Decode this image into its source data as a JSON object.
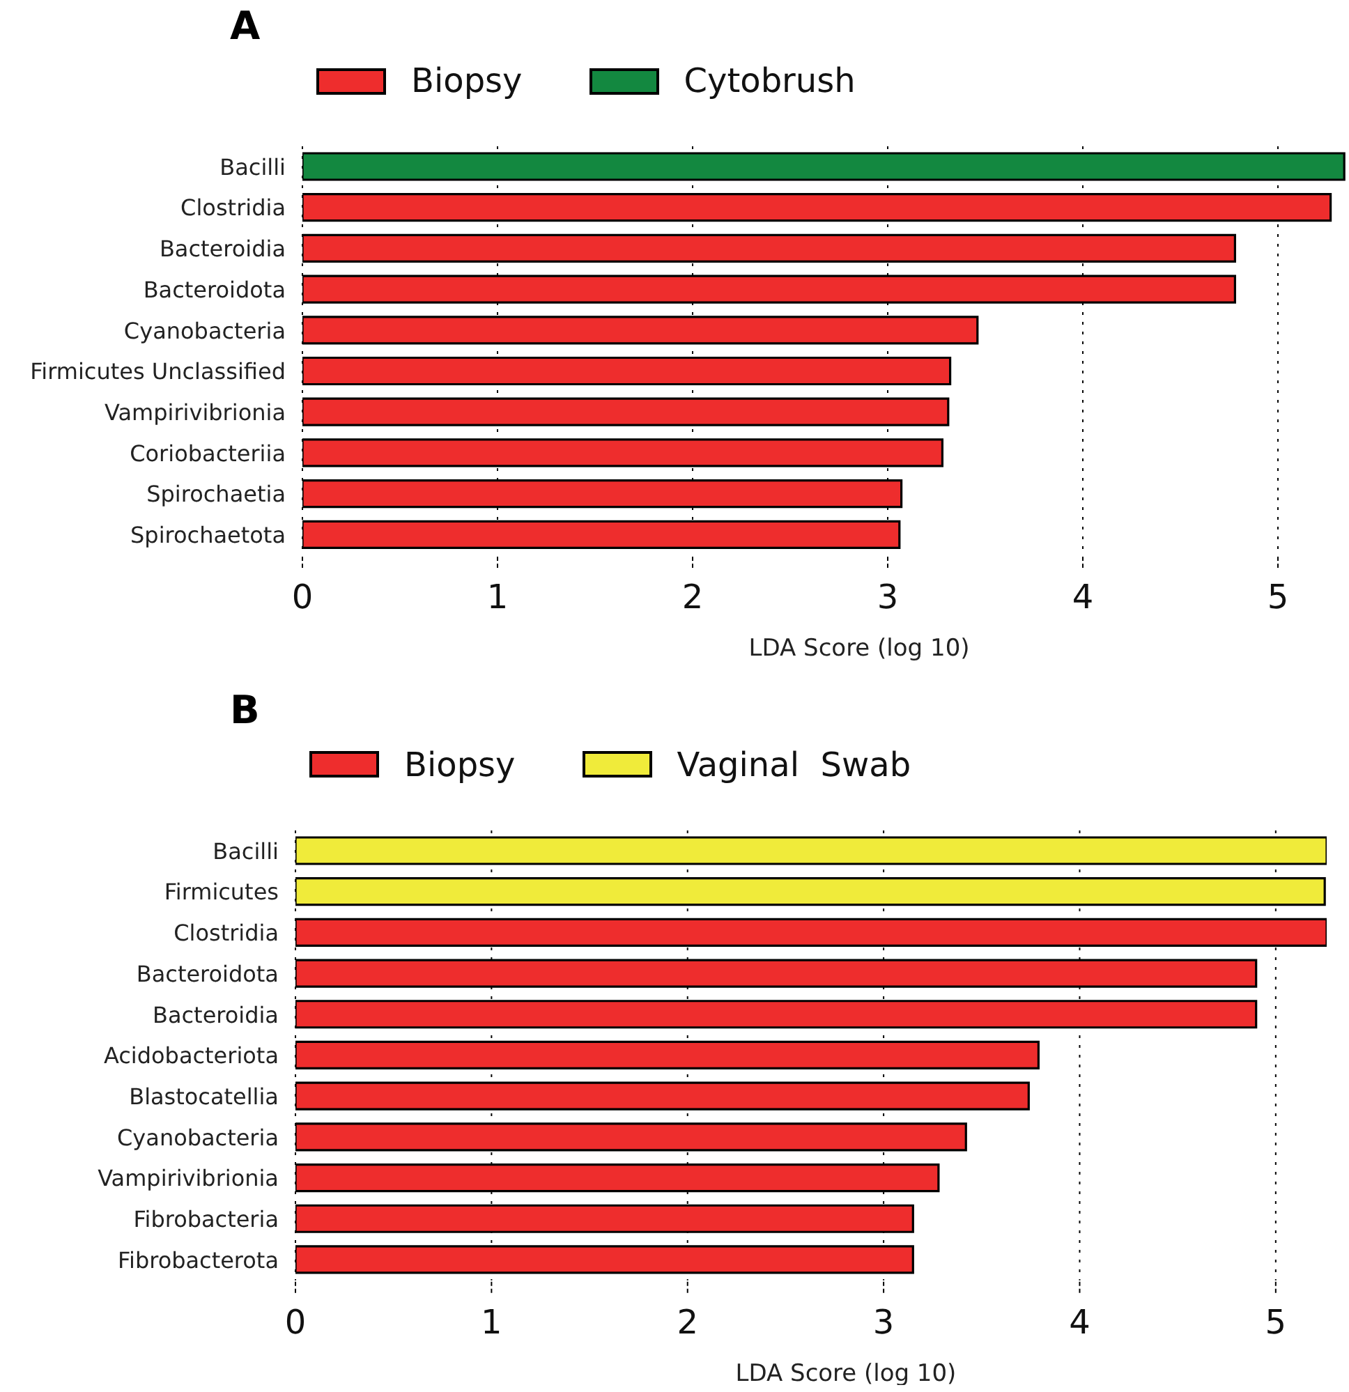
{
  "chart_data": [
    {
      "type": "bar",
      "title": "A",
      "orientation": "horizontal",
      "categories": [
        "Bacilli",
        "Clostridia",
        "Bacteroidia",
        "Bacteroidota",
        "Cyanobacteria",
        "Firmicutes Unclassified",
        "Vampirivibrionia",
        "Coriobacteriia",
        "Spirochaetia",
        "Spirochaetota"
      ],
      "series": [
        {
          "name": "Biopsy",
          "color": "#ee2d2d",
          "values": [
            null,
            5.27,
            4.78,
            4.78,
            3.46,
            3.32,
            3.31,
            3.28,
            3.07,
            3.06
          ]
        },
        {
          "name": "Cytobrush",
          "color": "#138840",
          "values": [
            5.34,
            null,
            null,
            null,
            null,
            null,
            null,
            null,
            null,
            null
          ]
        }
      ],
      "xlabel": "LDA Score (log 10)",
      "xlim": [
        0,
        5.35
      ],
      "xticks": [
        0,
        1,
        2,
        3,
        4,
        5
      ],
      "grid": "x",
      "legend": "top left"
    },
    {
      "type": "bar",
      "title": "B",
      "orientation": "horizontal",
      "categories": [
        "Bacilli",
        "Firmicutes",
        "Clostridia",
        "Bacteroidota",
        "Bacteroidia",
        "Acidobacteriota",
        "Blastocatellia",
        "Cyanobacteria",
        "Vampirivibrionia",
        "Fibrobacteria",
        "Fibrobacterota"
      ],
      "series": [
        {
          "name": "Biopsy",
          "color": "#ee2d2d",
          "values": [
            null,
            null,
            5.26,
            4.9,
            4.9,
            3.79,
            3.74,
            3.42,
            3.28,
            3.15,
            3.15
          ]
        },
        {
          "name": "Vaginal  Swab",
          "color": "#f0eb3a",
          "values": [
            5.26,
            5.25,
            null,
            null,
            null,
            null,
            null,
            null,
            null,
            null,
            null
          ]
        }
      ],
      "xlabel": "LDA Score (log 10)",
      "xlim": [
        0,
        5.26
      ],
      "xticks": [
        0,
        1,
        2,
        3,
        4,
        5
      ],
      "grid": "x",
      "legend": "top left"
    }
  ]
}
